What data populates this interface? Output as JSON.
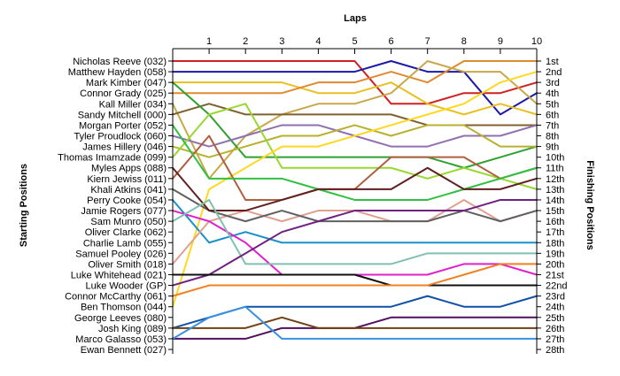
{
  "chart_data": {
    "type": "line",
    "title": "",
    "xlabel": "Laps",
    "ylabel_left": "Starting Positions",
    "ylabel_right": "Finishing Positions",
    "x": [
      0,
      1,
      2,
      3,
      4,
      5,
      6,
      7,
      8,
      9,
      10
    ],
    "x_tick_labels": [
      "1",
      "2",
      "3",
      "4",
      "5",
      "6",
      "7",
      "8",
      "9",
      "10"
    ],
    "xlim": [
      0,
      10
    ],
    "ylim": [
      1,
      28
    ],
    "y_inverted": true,
    "grid": false,
    "starting_labels": [
      "Nicholas Reeve (032)",
      "Matthew Hayden (058)",
      "Mark Kimber (047)",
      "Connor Grady (025)",
      "Kall Miller (034)",
      "Sandy Mitchell (000)",
      "Morgan Porter (052)",
      "Tyler Proudlock (060)",
      "James Hillery (046)",
      "Thomas Imamzade (099)",
      "Myles Apps (088)",
      "Kiern Jewiss (011)",
      "Khali Atkins (041)",
      "Perry Cooke (054)",
      "Jamie Rogers (077)",
      "Sam Munro (050)",
      "Oliver Clarke (062)",
      "Charlie Lamb (055)",
      "Samuel Pooley (026)",
      "Oliver Smith (018)",
      "Luke Whitehead (021)",
      "Luke Wooder (GP)",
      "Connor McCarthy (061)",
      "Ben Thomson (044)",
      "George Leeves (080)",
      "Josh King (089)",
      "Marco Galasso (053)",
      "Ewan Bennett (027)"
    ],
    "finishing_labels": [
      "1st",
      "2nd",
      "3rd",
      "4th",
      "5th",
      "6th",
      "7th",
      "8th",
      "9th",
      "10th",
      "11th",
      "12th",
      "13th",
      "14th",
      "15th",
      "16th",
      "17th",
      "18th",
      "19th",
      "20th",
      "21st",
      "22nd",
      "23rd",
      "24th",
      "25th",
      "26th",
      "27th",
      "28th"
    ],
    "series": [
      {
        "color": "#d02020",
        "values": [
          1,
          1,
          1,
          1,
          1,
          1,
          5,
          5,
          4,
          4,
          3
        ]
      },
      {
        "color": "#1a1aa8",
        "values": [
          2,
          2,
          2,
          2,
          2,
          2,
          1,
          2,
          2,
          6,
          4
        ]
      },
      {
        "color": "#e8c020",
        "values": [
          3,
          3,
          3,
          3,
          4,
          4,
          3,
          5,
          6,
          5,
          6
        ]
      },
      {
        "color": "#e08a30",
        "values": [
          4,
          4,
          4,
          4,
          3,
          3,
          2,
          3,
          1,
          1,
          1
        ]
      },
      {
        "color": "#c8a84a",
        "values": [
          5,
          12,
          8,
          6,
          5,
          5,
          4,
          1,
          2,
          2,
          5
        ]
      },
      {
        "color": "#806030",
        "values": [
          6,
          5,
          6,
          6,
          6,
          6,
          6,
          7,
          7,
          7,
          7
        ]
      },
      {
        "color": "#30a030",
        "values": [
          3,
          6,
          10,
          10,
          10,
          10,
          10,
          10,
          11,
          10,
          9
        ]
      },
      {
        "color": "#9070b0",
        "values": [
          8,
          9,
          8,
          7,
          7,
          8,
          9,
          9,
          8,
          8,
          7
        ]
      },
      {
        "color": "#b8b030",
        "values": [
          9,
          10,
          9,
          8,
          8,
          7,
          8,
          7,
          7,
          9,
          9
        ]
      },
      {
        "color": "#98d830",
        "values": [
          10,
          6,
          5,
          11,
          11,
          11,
          11,
          12,
          11,
          12,
          13
        ]
      },
      {
        "color": "#ffd820",
        "values": [
          24,
          13,
          11,
          9,
          9,
          8,
          7,
          6,
          5,
          3,
          2
        ]
      },
      {
        "color": "#b06040",
        "values": [
          12,
          8,
          14,
          14,
          13,
          13,
          10,
          10,
          10,
          12,
          11
        ]
      },
      {
        "color": "#1890c8",
        "values": [
          14,
          18,
          17,
          18,
          18,
          18,
          18,
          18,
          18,
          18,
          18
        ]
      },
      {
        "color": "#30c040",
        "values": [
          7,
          12,
          12,
          12,
          13,
          14,
          14,
          14,
          13,
          12,
          11
        ]
      },
      {
        "color": "#e0a090",
        "values": [
          20,
          16,
          15,
          16,
          15,
          15,
          16,
          16,
          14,
          16,
          15
        ]
      },
      {
        "color": "#606060",
        "values": [
          13,
          15,
          16,
          15,
          16,
          16,
          16,
          16,
          15,
          16,
          15
        ]
      },
      {
        "color": "#602020",
        "values": [
          11,
          15,
          15,
          14,
          13,
          13,
          13,
          11,
          13,
          13,
          12
        ]
      },
      {
        "color": "#e020c8",
        "values": [
          15,
          16,
          18,
          21,
          21,
          21,
          21,
          21,
          20,
          20,
          21
        ]
      },
      {
        "color": "#80c0b0",
        "values": [
          16,
          14,
          20,
          20,
          20,
          20,
          20,
          19,
          19,
          19,
          19
        ]
      },
      {
        "color": "#702080",
        "values": [
          22,
          21,
          19,
          17,
          16,
          15,
          15,
          15,
          15,
          14,
          14
        ]
      },
      {
        "color": "#101010",
        "values": [
          21,
          21,
          21,
          21,
          21,
          21,
          22,
          22,
          22,
          22,
          22
        ]
      },
      {
        "color": "#f08020",
        "values": [
          23,
          22,
          22,
          22,
          22,
          22,
          22,
          22,
          21,
          20,
          20
        ]
      },
      {
        "color": "#1050a8",
        "values": [
          26,
          25,
          24,
          24,
          24,
          24,
          24,
          23,
          24,
          24,
          23
        ]
      },
      {
        "color": "#501060",
        "values": [
          27,
          27,
          27,
          26,
          26,
          26,
          25,
          25,
          25,
          25,
          25
        ]
      },
      {
        "color": "#704010",
        "values": [
          26,
          26,
          26,
          25,
          26,
          26,
          26,
          26,
          26,
          26,
          26
        ]
      },
      {
        "color": "#3890e0",
        "values": [
          27,
          25,
          24,
          27,
          27,
          27,
          27,
          27,
          27,
          27,
          27
        ]
      }
    ]
  }
}
